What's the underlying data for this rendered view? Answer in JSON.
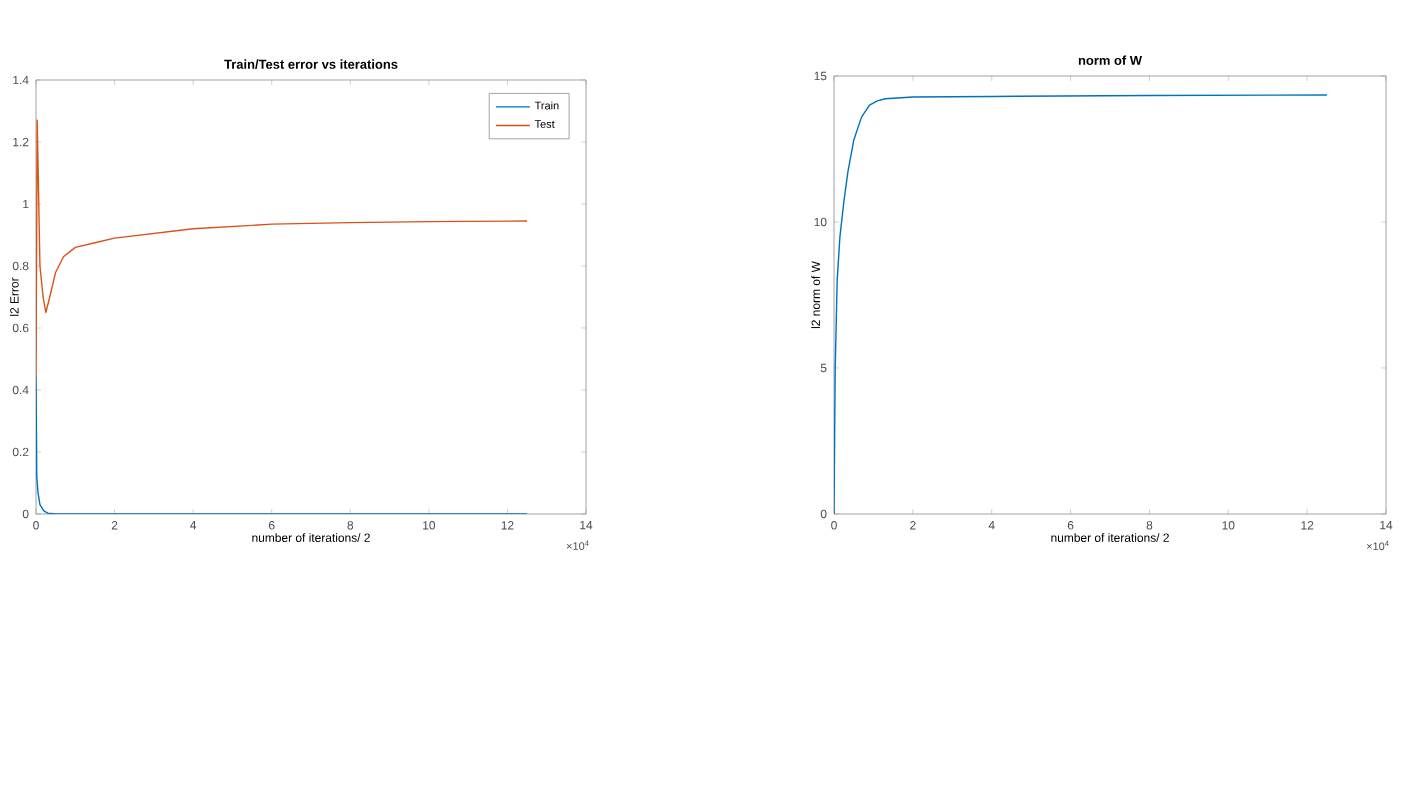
{
  "chart_data": [
    {
      "type": "line",
      "title": "Train/Test error vs iterations",
      "xlabel": "number of iterations/ 2",
      "ylabel": "l2 Error",
      "annotations": [
        "×10$^{4}$"
      ],
      "xlim": [
        0,
        14
      ],
      "ylim": [
        0,
        1.4
      ],
      "xticks": [
        0,
        2,
        4,
        6,
        8,
        10,
        12,
        14
      ],
      "yticks": [
        0,
        0.2,
        0.4,
        0.6,
        0.8,
        1,
        1.2,
        1.4
      ],
      "legend": "top right",
      "grid": false,
      "series": [
        {
          "name": "Train",
          "color": "#0072bd",
          "x": [
            0,
            0.02,
            0.05,
            0.1,
            0.2,
            0.3,
            0.5,
            2,
            6,
            12.5
          ],
          "values": [
            0.45,
            0.12,
            0.07,
            0.03,
            0.01,
            0.003,
            0,
            0,
            0,
            0
          ]
        },
        {
          "name": "Test",
          "color": "#d95319",
          "x": [
            0,
            0.03,
            0.1,
            0.18,
            0.25,
            0.35,
            0.5,
            0.7,
            1,
            1.5,
            2,
            3,
            4,
            6,
            8,
            10,
            12.5
          ],
          "values": [
            0.45,
            1.27,
            0.8,
            0.7,
            0.65,
            0.7,
            0.78,
            0.83,
            0.86,
            0.875,
            0.89,
            0.905,
            0.92,
            0.935,
            0.94,
            0.943,
            0.945
          ]
        }
      ]
    },
    {
      "type": "line",
      "title": "norm of W",
      "xlabel": "number of iterations/ 2",
      "ylabel": "l2 norm of W",
      "annotations": [
        "×10$^{4}$"
      ],
      "xlim": [
        0,
        14
      ],
      "ylim": [
        0,
        15
      ],
      "xticks": [
        0,
        2,
        4,
        6,
        8,
        10,
        12,
        14
      ],
      "yticks": [
        0,
        5,
        10,
        15
      ],
      "grid": false,
      "series": [
        {
          "color": "#0072bd",
          "x": [
            0,
            0.03,
            0.08,
            0.15,
            0.25,
            0.35,
            0.5,
            0.7,
            0.9,
            1.1,
            1.3,
            2,
            4,
            8,
            12.5
          ],
          "values": [
            0,
            5,
            8,
            9.5,
            10.7,
            11.7,
            12.8,
            13.6,
            14,
            14.15,
            14.22,
            14.28,
            14.3,
            14.33,
            14.35
          ]
        }
      ]
    }
  ]
}
